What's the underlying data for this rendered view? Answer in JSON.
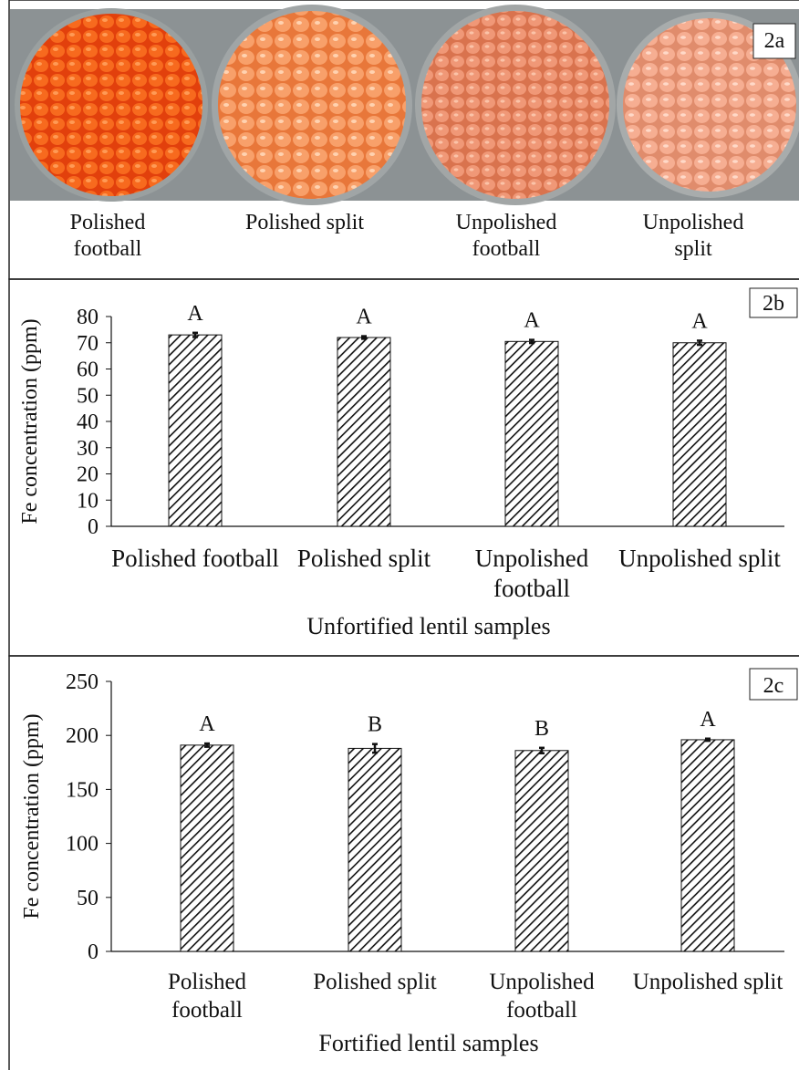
{
  "photo_panel": {
    "label": "2a",
    "captions": [
      "Polished football",
      "Polished split",
      "Unpolished football",
      "Unpolished split"
    ]
  },
  "chart_data": [
    {
      "type": "bar",
      "panel_label": "2b",
      "y_label": "Fe concentration (ppm)",
      "x_label": "Unfortified lentil samples",
      "categories": [
        "Polished football",
        "Polished split",
        "Unpolished football",
        "Unpolished split"
      ],
      "values": [
        73,
        72,
        70.5,
        70
      ],
      "errors": [
        0.8,
        0.5,
        0.6,
        0.8
      ],
      "letters": [
        "A",
        "A",
        "A",
        "A"
      ],
      "ylim": [
        0,
        80
      ],
      "yticks": [
        0,
        10,
        20,
        30,
        40,
        50,
        60,
        70,
        80
      ]
    },
    {
      "type": "bar",
      "panel_label": "2c",
      "y_label": "Fe concentration (ppm)",
      "x_label": "Fortified lentil samples",
      "categories": [
        "Polished football",
        "Polished split",
        "Unpolished football",
        "Unpolished split"
      ],
      "values": [
        191,
        188,
        186,
        196
      ],
      "errors": [
        1.5,
        4,
        2.5,
        1
      ],
      "letters": [
        "A",
        "B",
        "B",
        "A"
      ],
      "ylim": [
        0,
        250
      ],
      "yticks": [
        0,
        50,
        100,
        150,
        200,
        250
      ]
    }
  ]
}
